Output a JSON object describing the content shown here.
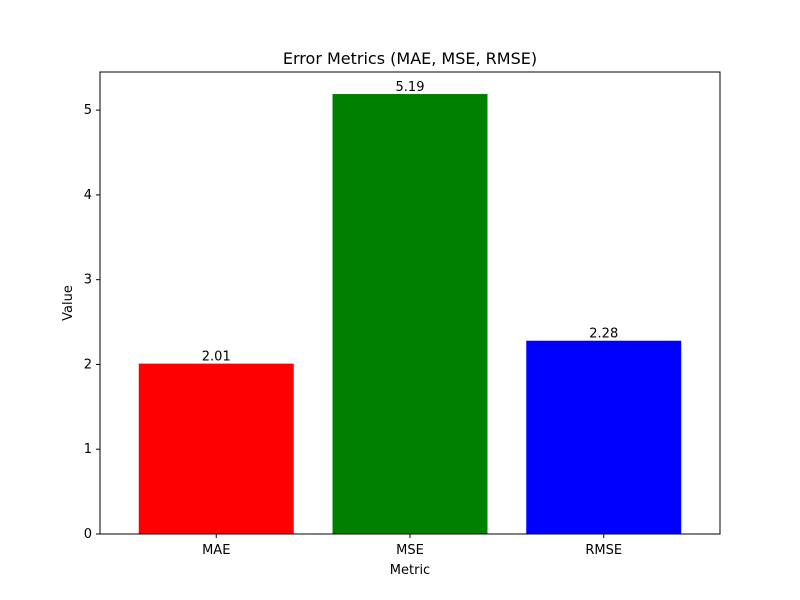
{
  "chart_data": {
    "type": "bar",
    "title": "Error Metrics (MAE, MSE, RMSE)",
    "xlabel": "Metric",
    "ylabel": "Value",
    "categories": [
      "MAE",
      "MSE",
      "RMSE"
    ],
    "values": [
      2.01,
      5.19,
      2.28
    ],
    "value_labels": [
      "2.01",
      "5.19",
      "2.28"
    ],
    "colors": [
      "#ff0000",
      "#008000",
      "#0000ff"
    ],
    "ylim": [
      0,
      5.45
    ],
    "yticks": [
      0,
      1,
      2,
      3,
      4,
      5
    ],
    "ytick_labels": [
      "0",
      "1",
      "2",
      "3",
      "4",
      "5"
    ],
    "grid": false,
    "legend": "none"
  }
}
